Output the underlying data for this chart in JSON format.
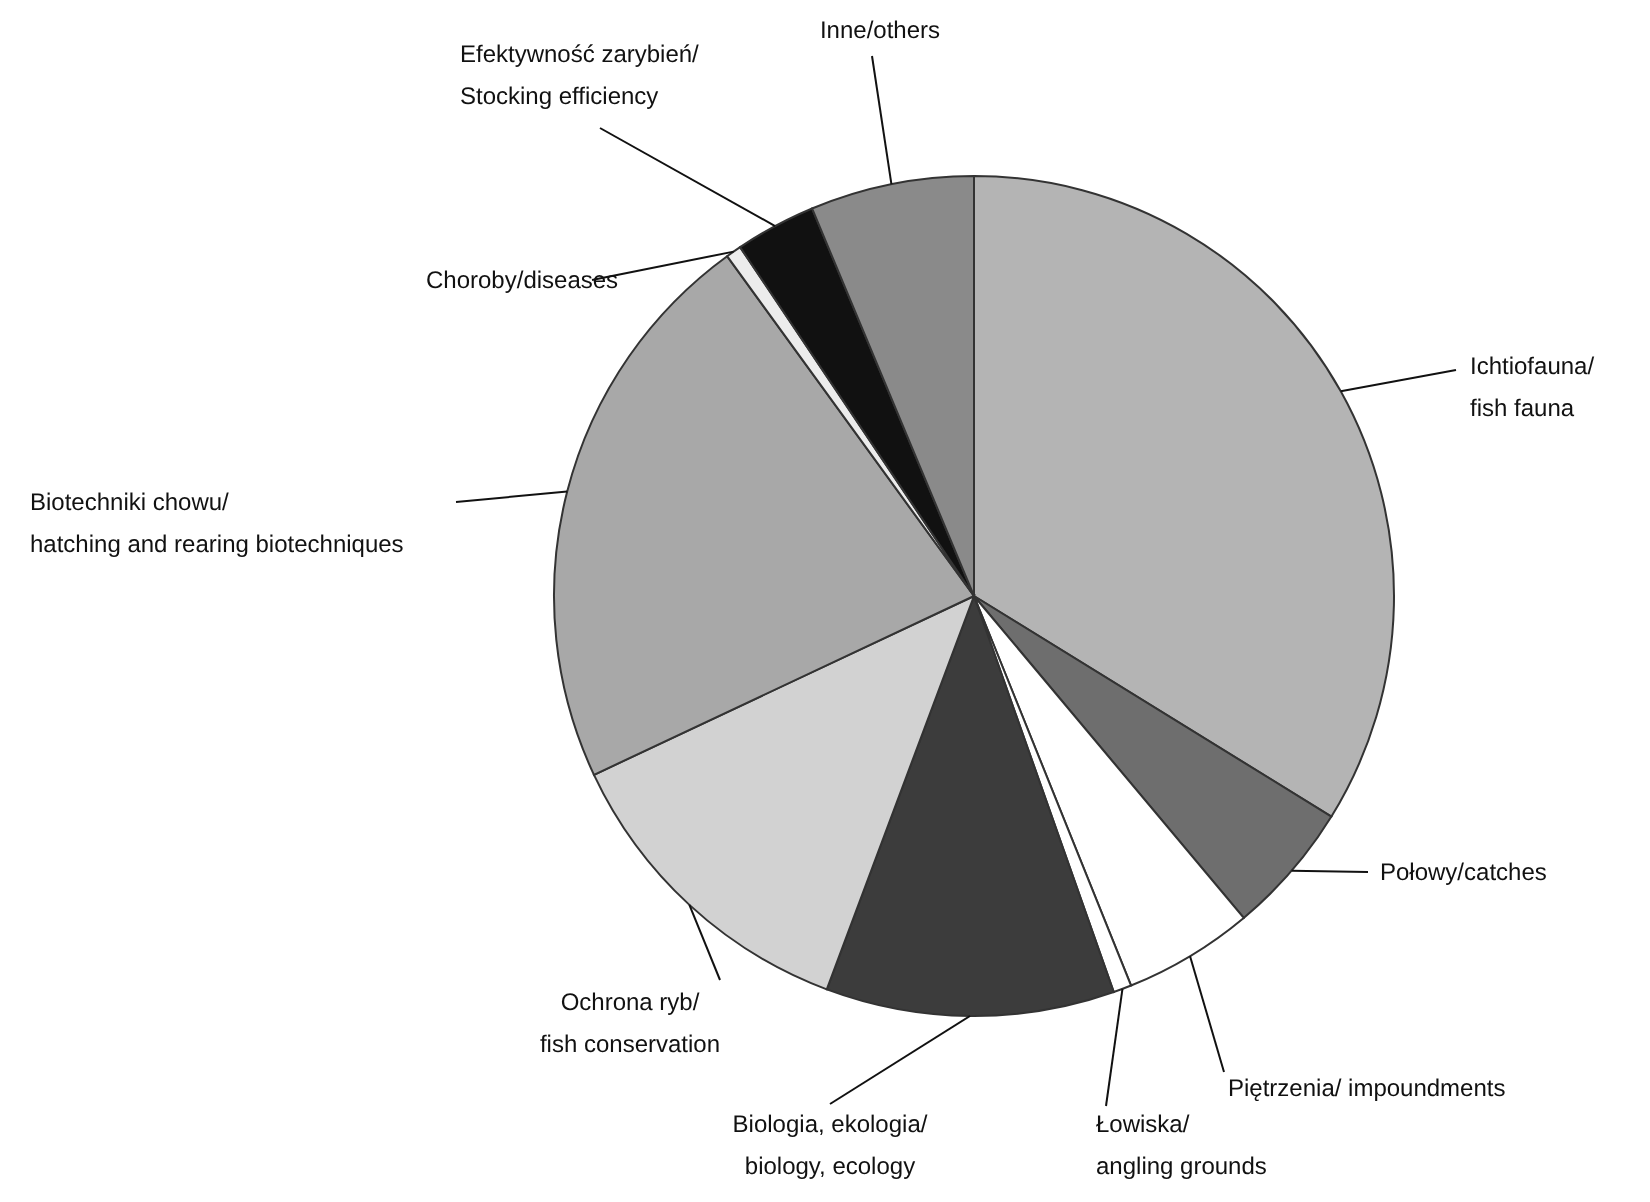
{
  "chart_data": {
    "type": "pie",
    "categories": [
      "Ichtiofauna/\nfish fauna",
      "Połowy/catches",
      "Piętrzenia/ impoundments",
      "Łowiska/\nangling grounds",
      "Biologia, ekologia/\nbiology, ecology",
      "Ochrona ryb/\nfish conservation",
      "Biotechniki chowu/\nhatching and rearing biotechniques",
      "Choroby/diseases",
      "Efektywność zarybień/\nStocking efficiency",
      "Inne/others"
    ],
    "values": [
      33.8,
      5.1,
      5.0,
      0.7,
      11.1,
      12.3,
      22.0,
      0.6,
      3.1,
      6.3
    ],
    "colors": [
      "#b4b4b4",
      "#6e6e6e",
      "#ffffff",
      "#ffffff",
      "#3c3c3c",
      "#d2d2d2",
      "#a8a8a8",
      "#ececec",
      "#111111",
      "#8a8a8a"
    ]
  }
}
